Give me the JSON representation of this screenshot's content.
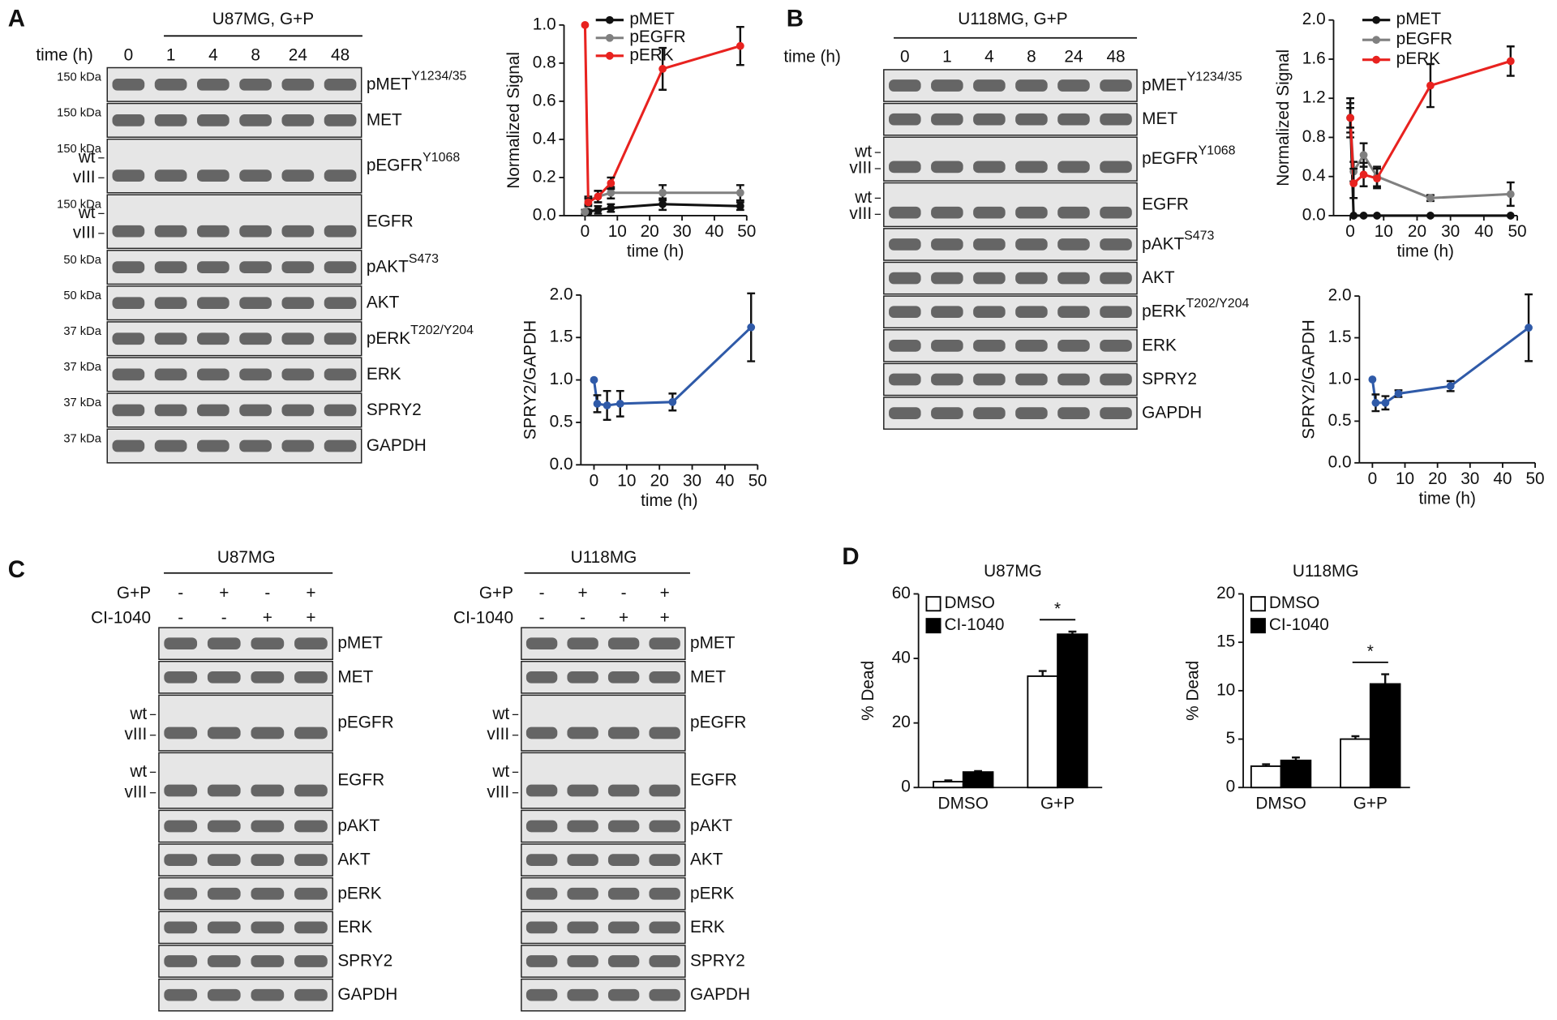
{
  "panel_letters": [
    "A",
    "B",
    "C",
    "D"
  ],
  "blots": [
    {
      "title": "U87MG, G+P",
      "lane_header": "time (h)",
      "lanes": [
        "0",
        "1",
        "4",
        "8",
        "24",
        "48"
      ],
      "rows": [
        {
          "label": "pMET",
          "sup": "Y1234/35",
          "kda": "150 kDa"
        },
        {
          "label": "MET",
          "kda": "150 kDa"
        },
        {
          "label": "pEGFR",
          "sup": "Y1068",
          "kda": "150 kDa",
          "bands": [
            "wt",
            "vIII"
          ]
        },
        {
          "label": "EGFR",
          "kda": "150 kDa",
          "bands": [
            "wt",
            "vIII"
          ]
        },
        {
          "label": "pAKT",
          "sup": "S473",
          "kda": "50 kDa"
        },
        {
          "label": "AKT",
          "kda": "50 kDa"
        },
        {
          "label": "pERK",
          "sup": "T202/Y204",
          "kda": "37 kDa"
        },
        {
          "label": "ERK",
          "kda": "37 kDa"
        },
        {
          "label": "SPRY2",
          "kda": "37 kDa"
        },
        {
          "label": "GAPDH",
          "kda": "37 kDa"
        }
      ]
    },
    {
      "title": "U118MG, G+P",
      "lane_header": "time (h)",
      "lanes": [
        "0",
        "1",
        "4",
        "8",
        "24",
        "48"
      ],
      "rows": [
        {
          "label": "pMET",
          "sup": "Y1234/35"
        },
        {
          "label": "MET"
        },
        {
          "label": "pEGFR",
          "sup": "Y1068",
          "bands": [
            "wt",
            "vIII"
          ]
        },
        {
          "label": "EGFR",
          "bands": [
            "wt",
            "vIII"
          ]
        },
        {
          "label": "pAKT",
          "sup": "S473"
        },
        {
          "label": "AKT"
        },
        {
          "label": "pERK",
          "sup": "T202/Y204"
        },
        {
          "label": "ERK"
        },
        {
          "label": "SPRY2"
        },
        {
          "label": "GAPDH"
        }
      ]
    },
    {
      "title": "U87MG",
      "treatments": [
        {
          "label": "G+P",
          "marks": [
            "-",
            "+",
            "-",
            "+"
          ]
        },
        {
          "label": "CI-1040",
          "marks": [
            "-",
            "-",
            "+",
            "+"
          ]
        }
      ],
      "rows": [
        {
          "label": "pMET"
        },
        {
          "label": "MET"
        },
        {
          "label": "pEGFR",
          "bands": [
            "wt",
            "vIII"
          ]
        },
        {
          "label": "EGFR",
          "bands": [
            "wt",
            "vIII"
          ]
        },
        {
          "label": "pAKT"
        },
        {
          "label": "AKT"
        },
        {
          "label": "pERK"
        },
        {
          "label": "ERK"
        },
        {
          "label": "SPRY2"
        },
        {
          "label": "GAPDH"
        }
      ]
    },
    {
      "title": "U118MG",
      "treatments": [
        {
          "label": "G+P",
          "marks": [
            "-",
            "+",
            "-",
            "+"
          ]
        },
        {
          "label": "CI-1040",
          "marks": [
            "-",
            "-",
            "+",
            "+"
          ]
        }
      ],
      "rows": [
        {
          "label": "pMET"
        },
        {
          "label": "MET"
        },
        {
          "label": "pEGFR",
          "bands": [
            "wt",
            "vIII"
          ]
        },
        {
          "label": "EGFR",
          "bands": [
            "wt",
            "vIII"
          ]
        },
        {
          "label": "pAKT"
        },
        {
          "label": "AKT"
        },
        {
          "label": "pERK"
        },
        {
          "label": "ERK"
        },
        {
          "label": "SPRY2"
        },
        {
          "label": "GAPDH"
        }
      ]
    }
  ],
  "chart_data": [
    {
      "type": "line",
      "x_label": "time (h)",
      "y_label": "Normalized Signal",
      "x": [
        0,
        1,
        4,
        8,
        24,
        48
      ],
      "xlim": [
        -6.5,
        50
      ],
      "xticks": [
        0,
        10,
        20,
        30,
        40,
        50
      ],
      "ylim": [
        0,
        1.0
      ],
      "yticks": [
        {
          "value": 0,
          "label": "0.0"
        },
        0.2,
        0.4,
        0.6,
        0.8,
        {
          "value": 1,
          "label": "1.0"
        }
      ],
      "series": [
        {
          "name": "pMET",
          "color": "#111111",
          "values": [
            0.02,
            0.02,
            0.03,
            0.04,
            0.06,
            0.05
          ],
          "errors": [
            0.01,
            0.01,
            0.02,
            0.02,
            0.03,
            0.02
          ]
        },
        {
          "name": "pEGFR",
          "color": "#808080",
          "values": [
            0.02,
            0.08,
            0.1,
            0.12,
            0.12,
            0.12
          ],
          "errors": [
            0.01,
            0.02,
            0.03,
            0.03,
            0.04,
            0.04
          ]
        },
        {
          "name": "pERK",
          "color": "#e8221f",
          "values": [
            1.0,
            0.07,
            0.1,
            0.17,
            0.77,
            0.89
          ],
          "errors": [
            0,
            0.02,
            0.03,
            0.03,
            0.11,
            0.1
          ]
        }
      ]
    },
    {
      "type": "line",
      "x_label": "time (h)",
      "y_label": "SPRY2/GAPDH",
      "x": [
        0,
        1,
        4,
        8,
        24,
        48
      ],
      "xlim": [
        -4,
        50
      ],
      "xticks": [
        0,
        10,
        20,
        30,
        40,
        50
      ],
      "ylim": [
        0,
        2.0
      ],
      "yticks": [
        {
          "value": 0,
          "label": "0.0"
        },
        0.5,
        {
          "value": 1,
          "label": "1.0"
        },
        1.5,
        {
          "value": 2,
          "label": "2.0"
        }
      ],
      "series": [
        {
          "name": "SPRY2/GAPDH",
          "color": "#2f5aa8",
          "values": [
            1.0,
            0.72,
            0.7,
            0.72,
            0.74,
            1.62
          ],
          "errors": [
            0,
            0.1,
            0.17,
            0.15,
            0.1,
            0.4
          ]
        }
      ]
    },
    {
      "type": "line",
      "x_label": "time (h)",
      "y_label": "Normalized Signal",
      "x": [
        0,
        1,
        4,
        8,
        24,
        48
      ],
      "xlim": [
        -5,
        50
      ],
      "xticks": [
        0,
        10,
        20,
        30,
        40,
        50
      ],
      "ylim": [
        0,
        2.0
      ],
      "yticks": [
        {
          "value": 0,
          "label": "0.0"
        },
        0.4,
        0.8,
        1.2,
        1.6,
        {
          "value": 2,
          "label": "2.0"
        }
      ],
      "series": [
        {
          "name": "pMET",
          "color": "#111111",
          "values": [
            1.0,
            0.0,
            0.0,
            0.0,
            0.0,
            0.0
          ],
          "errors": [
            0.2,
            0,
            0,
            0,
            0,
            0
          ]
        },
        {
          "name": "pEGFR",
          "color": "#808080",
          "values": [
            1.0,
            0.45,
            0.62,
            0.4,
            0.18,
            0.22
          ],
          "errors": [
            0.15,
            0.1,
            0.12,
            0.1,
            0.03,
            0.12
          ]
        },
        {
          "name": "pERK",
          "color": "#e8221f",
          "values": [
            1.0,
            0.33,
            0.42,
            0.38,
            1.33,
            1.58
          ],
          "errors": [
            0.1,
            0.15,
            0.12,
            0.1,
            0.22,
            0.15
          ]
        }
      ]
    },
    {
      "type": "line",
      "x_label": "time (h)",
      "y_label": "SPRY2/GAPDH",
      "x": [
        0,
        1,
        4,
        8,
        24,
        48
      ],
      "xlim": [
        -4,
        50
      ],
      "xticks": [
        0,
        10,
        20,
        30,
        40,
        50
      ],
      "ylim": [
        0,
        2.0
      ],
      "yticks": [
        {
          "value": 0,
          "label": "0.0"
        },
        0.5,
        {
          "value": 1,
          "label": "1.0"
        },
        1.5,
        {
          "value": 2,
          "label": "2.0"
        }
      ],
      "series": [
        {
          "name": "SPRY2/GAPDH",
          "color": "#2f5aa8",
          "values": [
            1.0,
            0.72,
            0.72,
            0.83,
            0.92,
            1.62
          ],
          "errors": [
            0,
            0.1,
            0.08,
            0.04,
            0.06,
            0.4
          ]
        }
      ]
    },
    {
      "type": "bar",
      "title": "U87MG",
      "y_label": "% Dead",
      "categories": [
        "DMSO",
        "G+P"
      ],
      "ylim": [
        0,
        60
      ],
      "yticks": [
        0,
        20,
        40,
        60
      ],
      "annotation": "*",
      "series": [
        {
          "name": "DMSO",
          "color": "#ffffff",
          "values": [
            1.8,
            34.5
          ],
          "errors": [
            0.4,
            1.6
          ]
        },
        {
          "name": "CI-1040",
          "color": "#000000",
          "values": [
            4.8,
            47.5
          ],
          "errors": [
            0.3,
            0.8
          ]
        }
      ]
    },
    {
      "type": "bar",
      "title": "U118MG",
      "y_label": "% Dead",
      "categories": [
        "DMSO",
        "G+P"
      ],
      "ylim": [
        0,
        20
      ],
      "yticks": [
        0,
        5,
        10,
        15,
        20
      ],
      "annotation": "*",
      "series": [
        {
          "name": "DMSO",
          "color": "#ffffff",
          "values": [
            2.2,
            5.0
          ],
          "errors": [
            0.2,
            0.3
          ]
        },
        {
          "name": "CI-1040",
          "color": "#000000",
          "values": [
            2.8,
            10.7
          ],
          "errors": [
            0.3,
            1.0
          ]
        }
      ]
    }
  ]
}
